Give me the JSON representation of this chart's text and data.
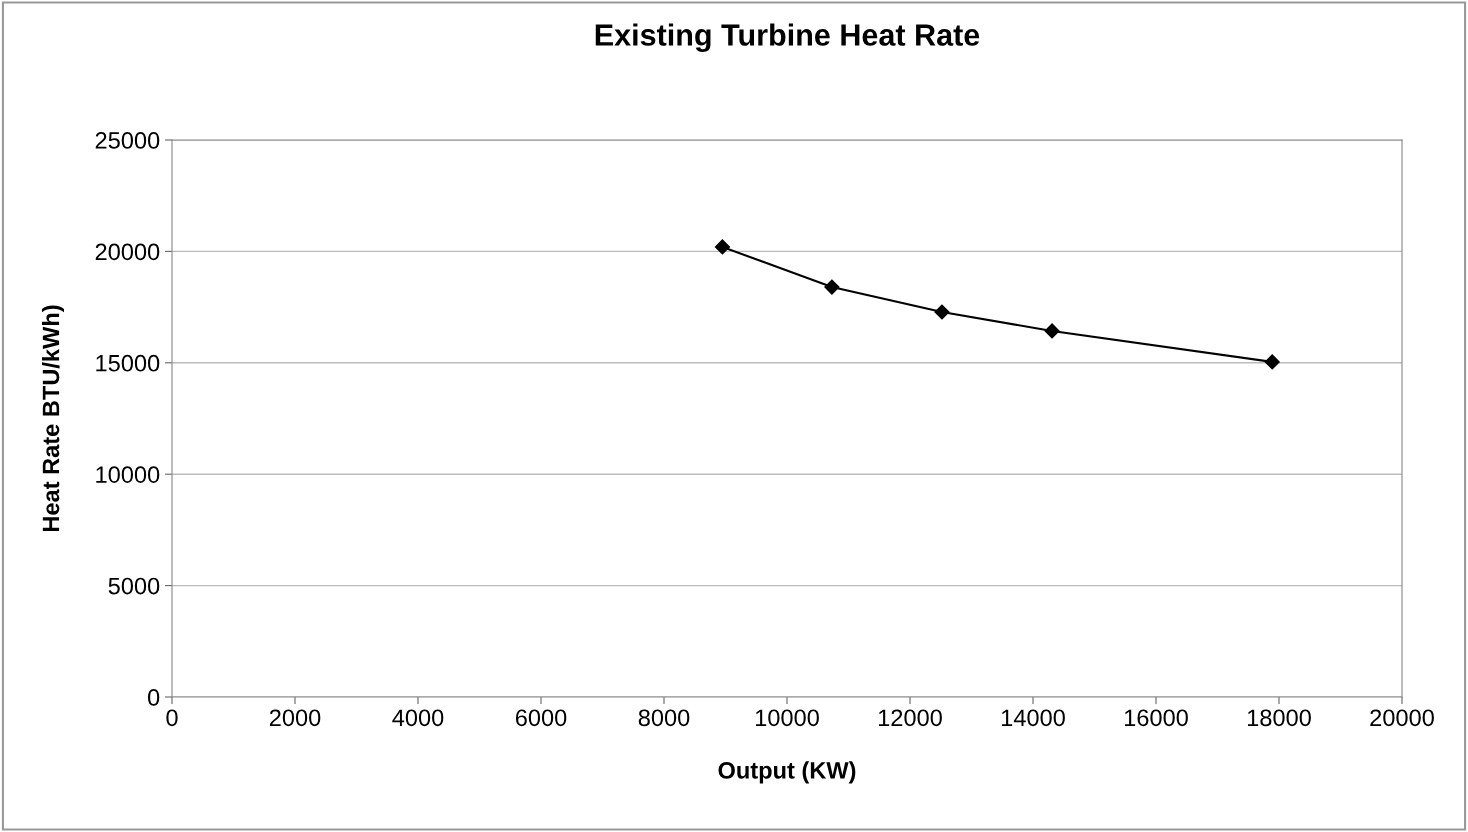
{
  "chart_data": {
    "type": "line",
    "title": "Existing Turbine Heat Rate",
    "xlabel": "Output (KW)",
    "ylabel": "Heat Rate BTU/kWh)",
    "x": [
      8950,
      10730,
      12520,
      14310,
      17890
    ],
    "series": [
      {
        "color": "#000000",
        "values": [
          20200,
          18400,
          17280,
          16430,
          15040
        ]
      }
    ],
    "xlim": [
      0,
      20000
    ],
    "xticks": [
      0,
      2000,
      4000,
      6000,
      8000,
      10000,
      12000,
      14000,
      16000,
      18000,
      20000
    ],
    "ylim": [
      0,
      25000
    ],
    "yticks": [
      0,
      5000,
      10000,
      15000,
      20000,
      25000
    ],
    "grid": "y",
    "marker": "diamond",
    "line_style": "solid"
  }
}
